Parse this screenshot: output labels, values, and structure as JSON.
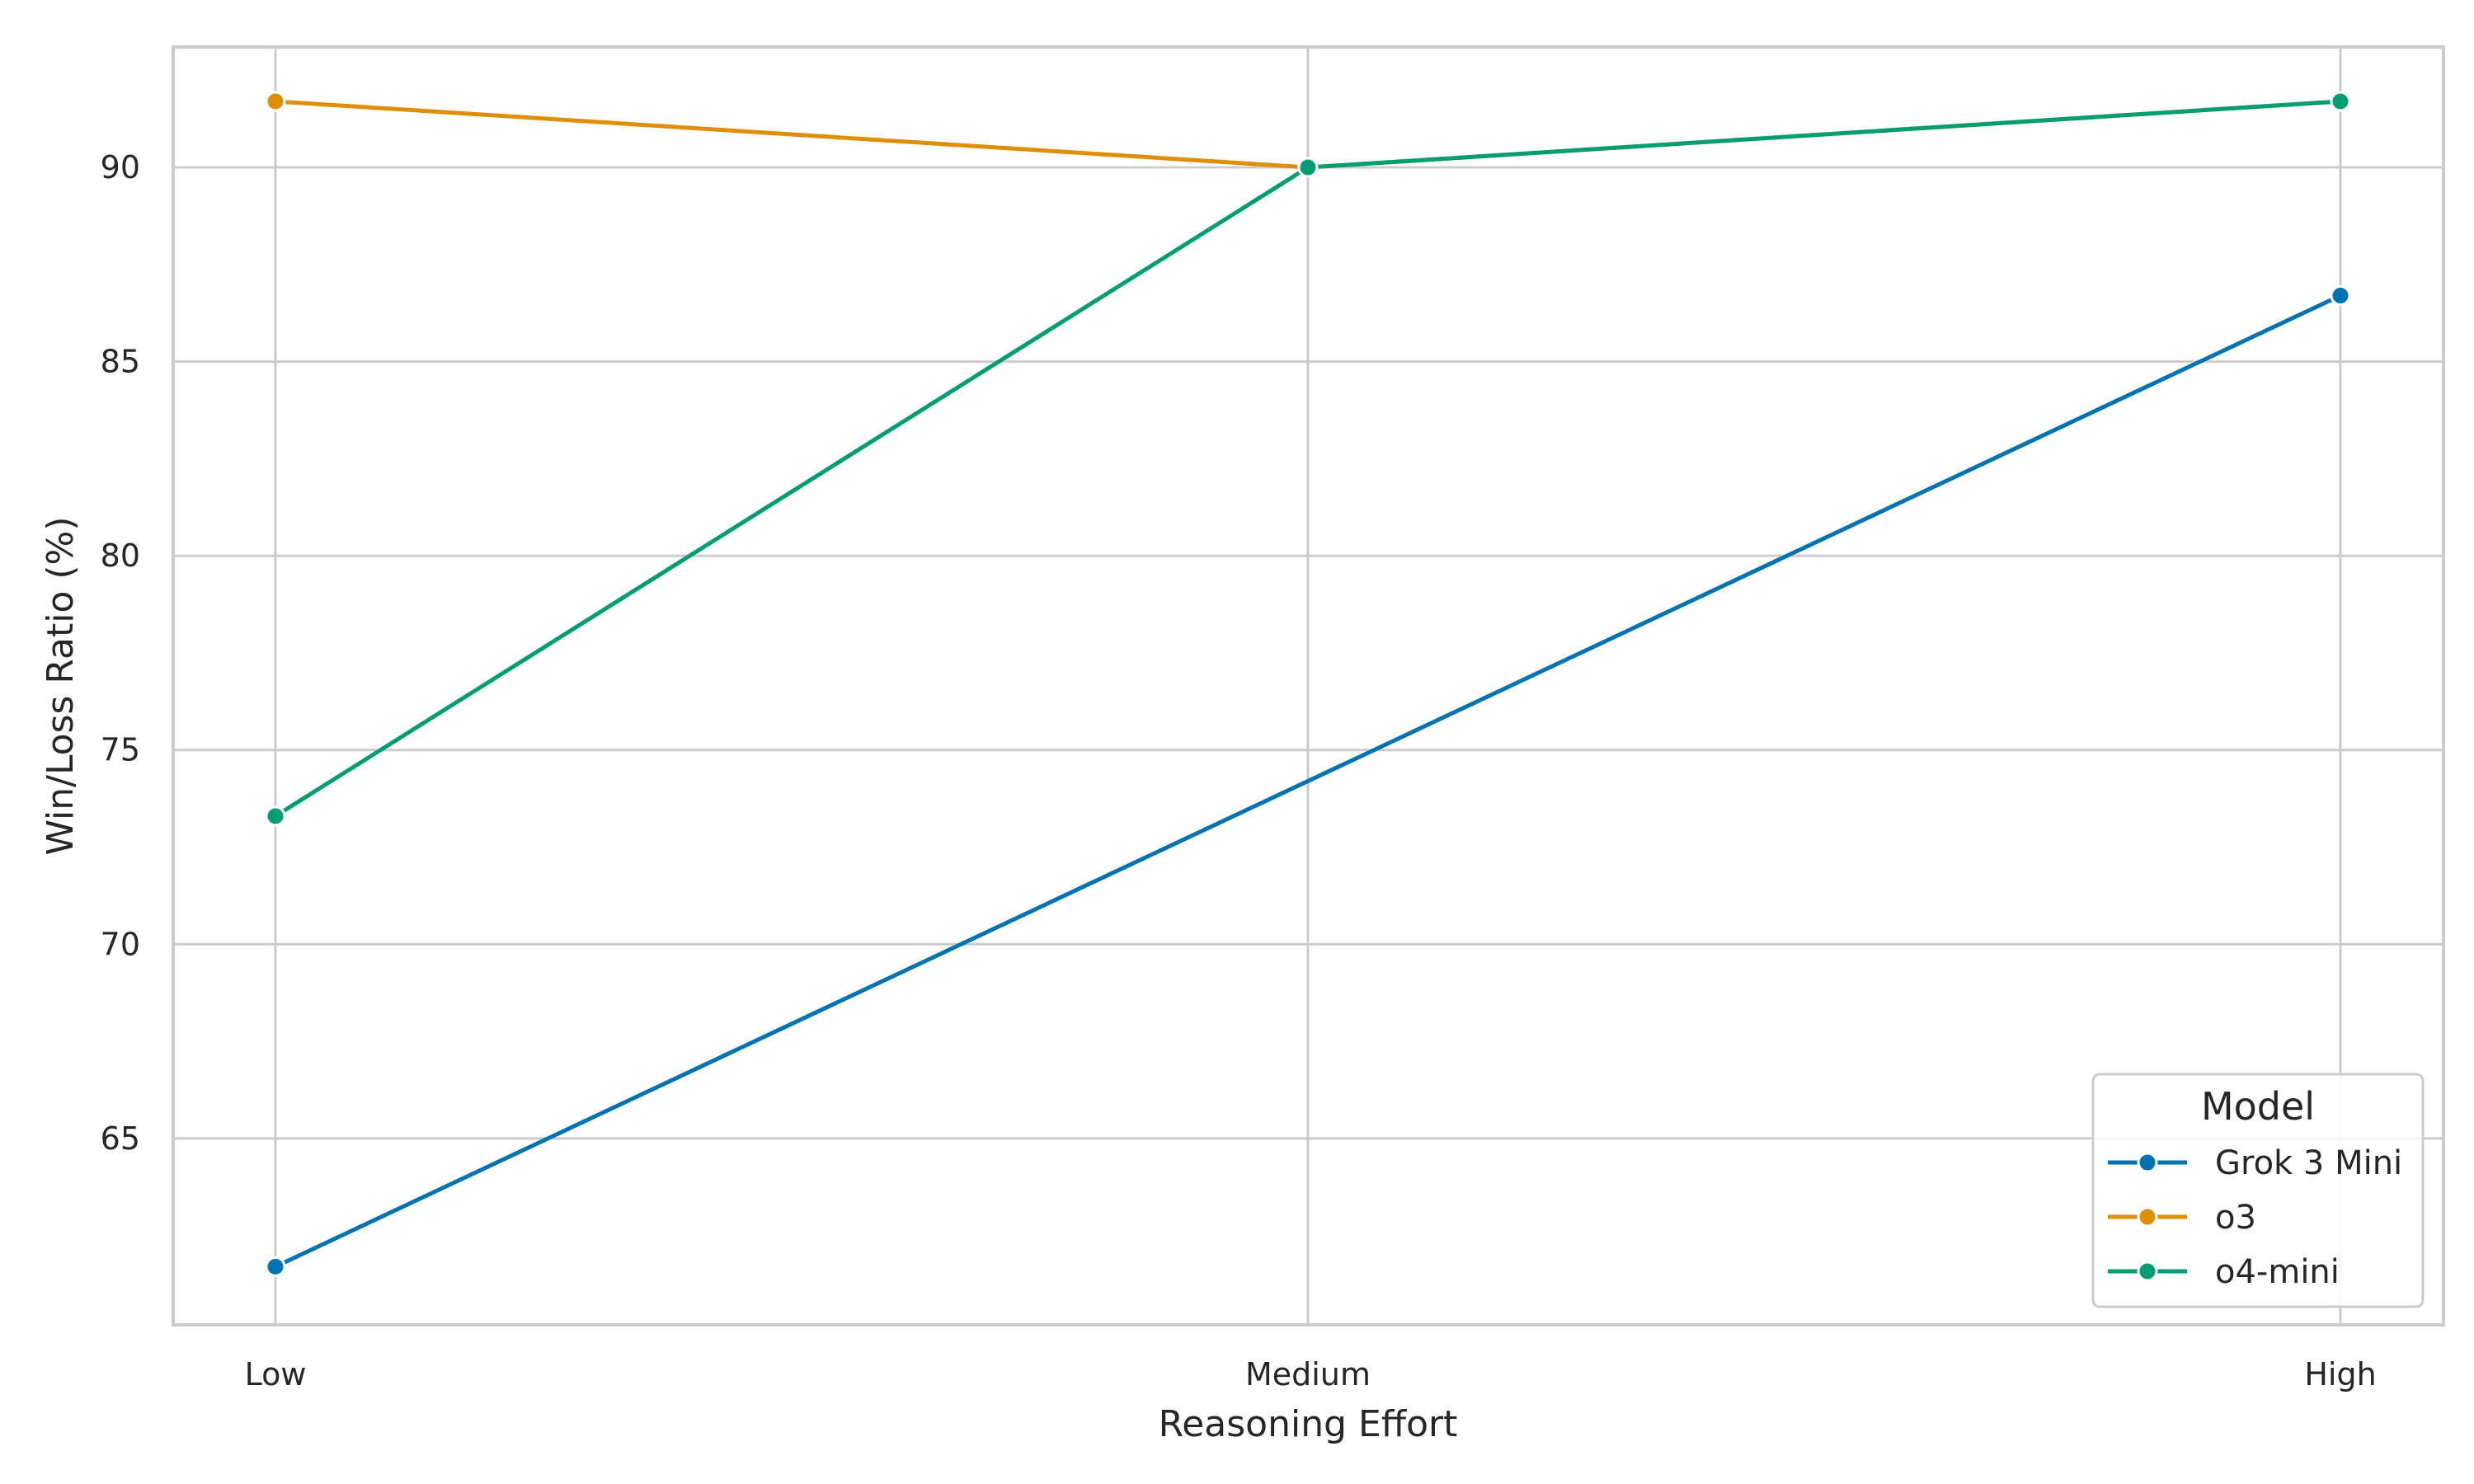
{
  "chart_data": {
    "type": "line",
    "categories": [
      "Low",
      "Medium",
      "High"
    ],
    "series": [
      {
        "name": "Grok 3 Mini",
        "color": "#0173b2",
        "values": [
          61.7,
          74.2,
          86.7
        ]
      },
      {
        "name": "o3",
        "color": "#de8f05",
        "values": [
          91.7,
          90.0,
          91.7
        ]
      },
      {
        "name": "o4-mini",
        "color": "#029e73",
        "values": [
          73.3,
          90.0,
          91.7
        ]
      }
    ],
    "series_markers": [
      [
        true,
        false,
        true
      ],
      [
        true,
        true,
        true
      ],
      [
        true,
        true,
        true
      ]
    ],
    "xlabel": "Reasoning Effort",
    "ylabel": "Win/Loss Ratio (%)",
    "ylim": [
      60.2,
      93.1
    ],
    "yticks": [
      65,
      70,
      75,
      80,
      85,
      90
    ],
    "grid": true,
    "legend": {
      "title": "Model",
      "position": "lower-right"
    }
  }
}
